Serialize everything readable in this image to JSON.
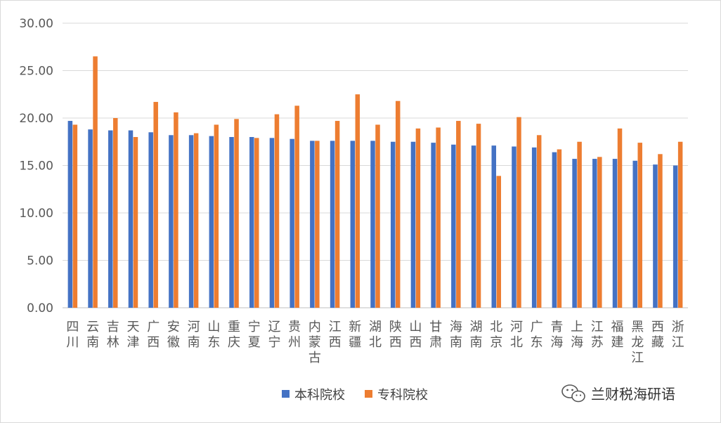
{
  "chart_data": {
    "type": "bar",
    "title": "",
    "xlabel": "",
    "ylabel": "",
    "ylim": [
      0,
      30
    ],
    "y_ticks": [
      "0.00",
      "5.00",
      "10.00",
      "15.00",
      "20.00",
      "25.00",
      "30.00"
    ],
    "grid": true,
    "legend_position": "bottom",
    "categories": [
      "四川",
      "云南",
      "吉林",
      "天津",
      "广西",
      "安徽",
      "河南",
      "山东",
      "重庆",
      "宁夏",
      "辽宁",
      "贵州",
      "内蒙古",
      "江西",
      "新疆",
      "湖北",
      "陕西",
      "山西",
      "甘肃",
      "海南",
      "湖南",
      "北京",
      "河北",
      "广东",
      "青海",
      "上海",
      "江苏",
      "福建",
      "黑龙江",
      "西藏",
      "浙江"
    ],
    "series": [
      {
        "name": "本科院校",
        "color": "#4472C4",
        "values": [
          19.7,
          18.8,
          18.7,
          18.7,
          18.5,
          18.2,
          18.2,
          18.1,
          18.0,
          18.0,
          17.9,
          17.8,
          17.6,
          17.6,
          17.6,
          17.6,
          17.5,
          17.5,
          17.4,
          17.2,
          17.1,
          17.1,
          17.0,
          16.9,
          16.4,
          15.7,
          15.7,
          15.7,
          15.5,
          15.1,
          15.0
        ]
      },
      {
        "name": "专科院校",
        "color": "#ED7D31",
        "values": [
          19.3,
          26.5,
          20.0,
          18.0,
          21.7,
          20.6,
          18.4,
          19.3,
          19.9,
          17.9,
          20.4,
          21.3,
          17.6,
          19.7,
          22.5,
          19.3,
          21.8,
          18.9,
          19.0,
          19.7,
          19.4,
          13.9,
          20.1,
          18.2,
          16.7,
          17.5,
          15.9,
          18.9,
          17.4,
          16.2,
          17.5
        ]
      }
    ]
  },
  "watermark": {
    "text": "兰财税海研语",
    "icon": "wechat-icon"
  },
  "colors": {
    "gridline": "#d9d9d9",
    "axis": "#bfbfbf",
    "text": "#595959"
  }
}
